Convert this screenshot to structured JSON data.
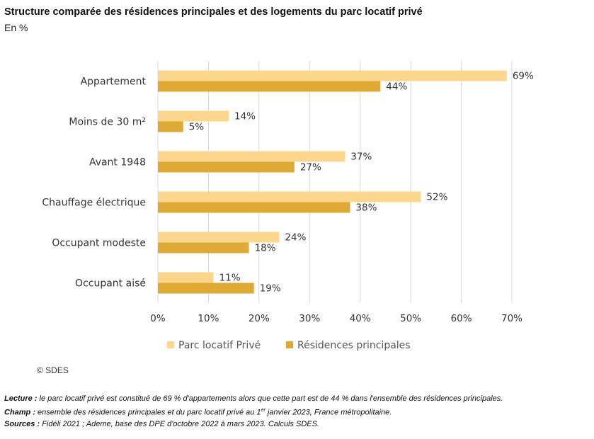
{
  "title": "Structure comparée des résidences principales et des logements du parc locatif privé",
  "subtitle": "En %",
  "colors": {
    "series_1": "#fdd68e",
    "series_2": "#dfa936",
    "grid": "#d9d9d9"
  },
  "chart_data": {
    "type": "bar",
    "orientation": "horizontal",
    "categories": [
      "Appartement",
      "Moins de 30 m²",
      "Avant 1948",
      "Chauffage électrique",
      "Occupant modeste",
      "Occupant aisé"
    ],
    "series": [
      {
        "name": "Parc locatif Privé",
        "values": [
          69,
          14,
          37,
          52,
          24,
          11
        ],
        "labels": [
          "69%",
          "14%",
          "37%",
          "52%",
          "24%",
          "11%"
        ]
      },
      {
        "name": "Résidences principales",
        "values": [
          44,
          5,
          27,
          38,
          18,
          19
        ],
        "labels": [
          "44%",
          "5%",
          "27%",
          "38%",
          "18%",
          "19%"
        ]
      }
    ],
    "xlim": [
      0,
      70
    ],
    "xticks": [
      0,
      10,
      20,
      30,
      40,
      50,
      60,
      70
    ],
    "xtick_labels": [
      "0%",
      "10%",
      "20%",
      "30%",
      "40%",
      "50%",
      "60%",
      "70%"
    ],
    "grid": true,
    "legend": "bottom"
  },
  "copyright": "© SDES",
  "notes": {
    "lecture_label": "Lecture :",
    "lecture_text": " le parc locatif privé est constitué de 69 % d'appartements alors que cette part est de 44 % dans l'ensemble des résidences principales.",
    "champ_label": "Champ :",
    "champ_text_1": " ensemble des résidences principales et du parc locatif privé au 1",
    "champ_sup": "er",
    "champ_text_2": " janvier 2023, France métropolitaine.",
    "sources_label": "Sources :",
    "sources_text": " Fidéli 2021 ; Ademe, base des DPE d'octobre 2022 à mars 2023. Calculs SDES."
  }
}
